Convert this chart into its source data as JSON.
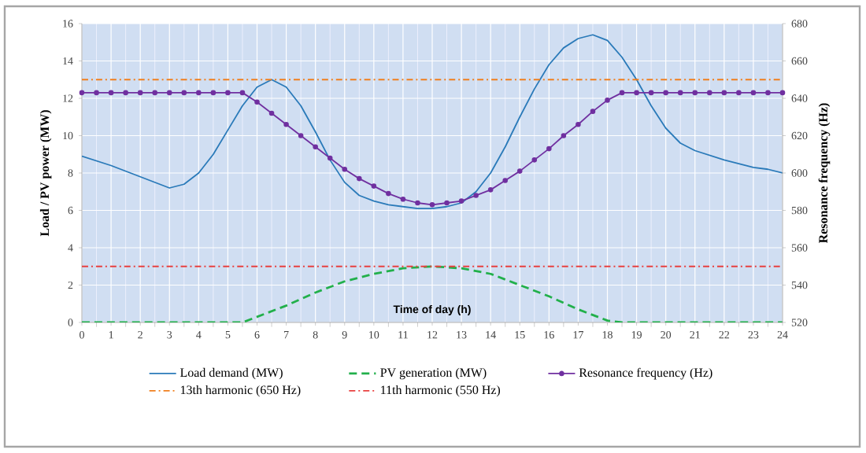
{
  "chart_data": {
    "type": "line",
    "xlabel": "Time of day (h)",
    "ylabel": "Load / PV power (MW)",
    "y2label": "Resonance frequency (Hz)",
    "xlim": [
      0,
      24
    ],
    "xticks": [
      0,
      1,
      2,
      3,
      4,
      5,
      6,
      7,
      8,
      9,
      10,
      11,
      12,
      13,
      14,
      15,
      16,
      17,
      18,
      19,
      20,
      21,
      22,
      23,
      24
    ],
    "ylim": [
      0,
      16
    ],
    "yticks": [
      0,
      2,
      4,
      6,
      8,
      10,
      12,
      14,
      16
    ],
    "y2lim": [
      520,
      680
    ],
    "y2ticks": [
      520,
      540,
      560,
      580,
      600,
      620,
      640,
      660,
      680
    ],
    "grid": true,
    "legend": "bottom",
    "series": [
      {
        "name": "Load demand (MW)",
        "color": "#2a7ab9",
        "line_style": "solid",
        "marker": "none",
        "x": [
          0,
          1,
          2,
          3,
          3.5,
          4,
          4.5,
          5,
          5.5,
          6,
          6.5,
          7,
          7.5,
          8,
          8.5,
          9,
          9.5,
          10,
          10.5,
          11,
          11.5,
          12,
          12.5,
          13,
          13.5,
          14,
          14.5,
          15,
          15.5,
          16,
          16.5,
          17,
          17.5,
          18,
          18.5,
          19,
          19.5,
          20,
          20.5,
          21,
          22,
          23,
          23.5,
          24
        ],
        "values": [
          8.9,
          8.4,
          7.8,
          7.2,
          7.4,
          8.0,
          9.0,
          10.3,
          11.6,
          12.6,
          13.0,
          12.6,
          11.6,
          10.2,
          8.7,
          7.5,
          6.8,
          6.5,
          6.3,
          6.2,
          6.1,
          6.1,
          6.2,
          6.4,
          7.0,
          8.0,
          9.4,
          11.0,
          12.5,
          13.8,
          14.7,
          15.2,
          15.4,
          15.1,
          14.2,
          13.0,
          11.6,
          10.4,
          9.6,
          9.2,
          8.7,
          8.3,
          8.2,
          8.0
        ]
      },
      {
        "name": "PV generation (MW)",
        "color": "#22b04b",
        "line_style": "dashed",
        "marker": "none",
        "x": [
          0,
          5.5,
          6,
          7,
          8,
          9,
          10,
          11,
          12,
          13,
          14,
          15,
          16,
          17,
          18,
          18.5,
          24
        ],
        "values": [
          0,
          0,
          0.3,
          0.9,
          1.6,
          2.2,
          2.6,
          2.9,
          3.0,
          2.9,
          2.6,
          2.0,
          1.4,
          0.7,
          0.1,
          0,
          0
        ]
      },
      {
        "name": "Resonance frequency (Hz)",
        "color": "#7030a0",
        "line_style": "solid",
        "marker": "circle",
        "axis": "y2",
        "x": [
          0,
          0.5,
          1,
          1.5,
          2,
          2.5,
          3,
          3.5,
          4,
          4.5,
          5,
          5.5,
          6,
          6.5,
          7,
          7.5,
          8,
          8.5,
          9,
          9.5,
          10,
          10.5,
          11,
          11.5,
          12,
          12.5,
          13,
          13.5,
          14,
          14.5,
          15,
          15.5,
          16,
          16.5,
          17,
          17.5,
          18,
          18.5,
          19,
          19.5,
          20,
          20.5,
          21,
          21.5,
          22,
          22.5,
          23,
          23.5,
          24
        ],
        "values": [
          643,
          643,
          643,
          643,
          643,
          643,
          643,
          643,
          643,
          643,
          643,
          643,
          638,
          632,
          626,
          620,
          614,
          608,
          602,
          597,
          593,
          589,
          586,
          584,
          583,
          584,
          585,
          588,
          591,
          596,
          601,
          607,
          613,
          620,
          626,
          633,
          639,
          643,
          643,
          643,
          643,
          643,
          643,
          643,
          643,
          643,
          643,
          643,
          643
        ]
      },
      {
        "name": "13th harmonic (650 Hz)",
        "color": "#f07f1e",
        "line_style": "dashdot",
        "marker": "none",
        "axis": "y2",
        "x": [
          0,
          24
        ],
        "values": [
          650,
          650
        ]
      },
      {
        "name": "11th harmonic (550 Hz)",
        "color": "#e8403f",
        "line_style": "dashdot",
        "marker": "none",
        "axis": "y2",
        "x": [
          0,
          24
        ],
        "values": [
          550,
          550
        ]
      }
    ]
  }
}
